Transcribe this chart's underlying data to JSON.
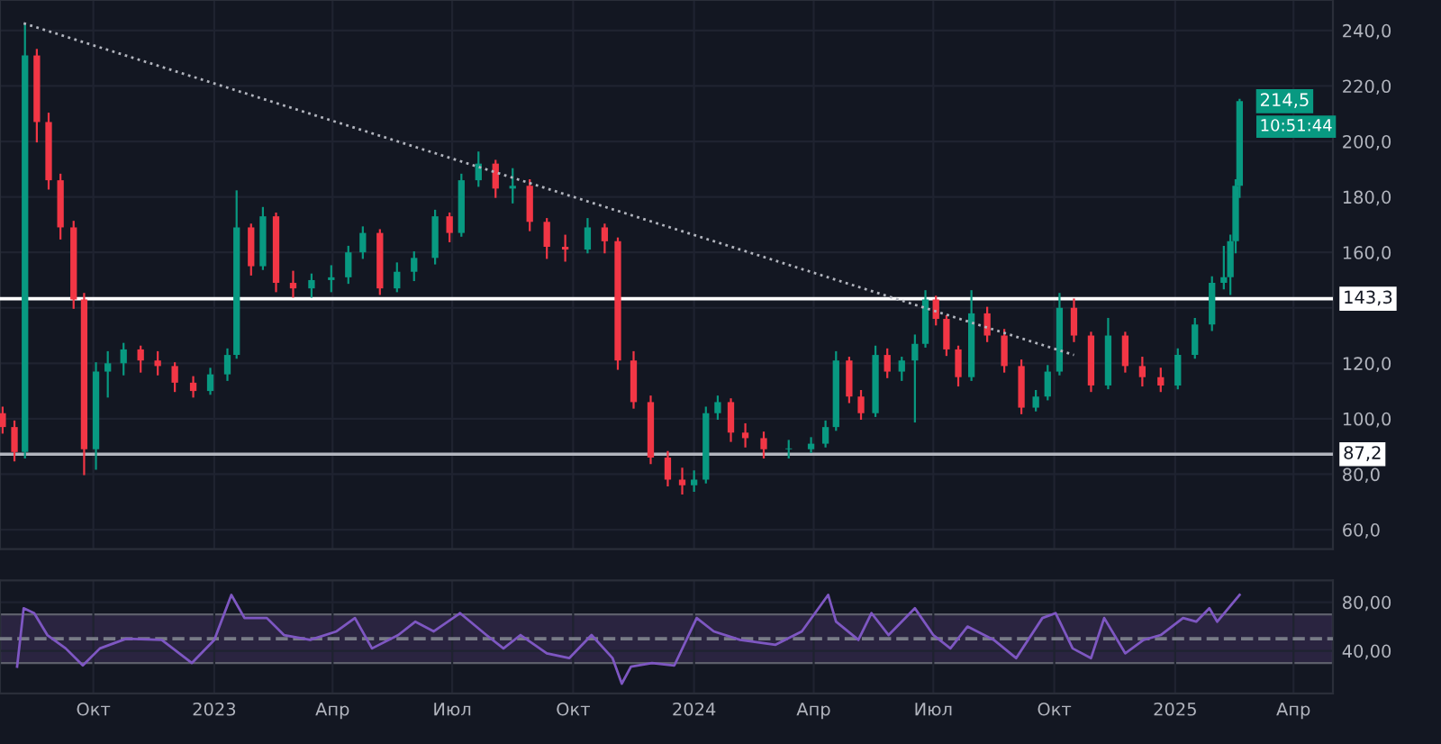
{
  "chart_data": [
    {
      "type": "candlestick",
      "x": [
        "2022-07-24",
        "2022-08-02",
        "2022-08-10",
        "2022-08-19",
        "2022-08-28",
        "2022-09-06",
        "2022-09-16",
        "2022-09-24",
        "2022-10-03",
        "2022-10-12",
        "2022-10-24",
        "2022-11-06",
        "2022-11-19",
        "2022-12-02",
        "2022-12-16",
        "2022-12-29",
        "2023-01-11",
        "2023-01-18",
        "2023-01-29",
        "2023-02-07",
        "2023-02-17",
        "2023-03-02",
        "2023-03-16",
        "2023-03-31",
        "2023-04-13",
        "2023-04-24",
        "2023-05-07",
        "2023-05-20",
        "2023-06-02",
        "2023-06-18",
        "2023-06-29",
        "2023-07-08",
        "2023-07-21",
        "2023-08-03",
        "2023-08-16",
        "2023-08-29",
        "2023-09-11",
        "2023-09-25",
        "2023-10-12",
        "2023-10-25",
        "2023-11-04",
        "2023-11-16",
        "2023-11-29",
        "2023-12-12",
        "2023-12-23",
        "2024-01-01",
        "2024-01-10",
        "2024-01-19",
        "2024-01-29",
        "2024-02-09",
        "2024-02-23",
        "2024-03-13",
        "2024-03-30",
        "2024-04-10",
        "2024-04-18",
        "2024-04-28",
        "2024-05-07",
        "2024-05-18",
        "2024-05-27",
        "2024-06-07",
        "2024-06-17",
        "2024-06-25",
        "2024-07-03",
        "2024-07-11",
        "2024-07-20",
        "2024-07-30",
        "2024-08-11",
        "2024-08-24",
        "2024-09-06",
        "2024-09-17",
        "2024-09-26",
        "2024-10-05",
        "2024-10-16",
        "2024-10-29",
        "2024-11-11",
        "2024-11-24",
        "2024-12-07",
        "2024-12-21",
        "2025-01-03",
        "2025-01-16",
        "2025-01-29",
        "2025-02-07",
        "2025-02-12",
        "2025-02-16",
        "2025-02-19"
      ],
      "ohlc": [
        [
          102,
          104,
          95,
          97
        ],
        [
          97,
          99,
          85,
          88
        ],
        [
          88,
          242,
          86,
          231
        ],
        [
          231,
          233,
          200,
          207
        ],
        [
          207,
          210,
          183,
          186
        ],
        [
          186,
          188,
          165,
          169
        ],
        [
          169,
          171,
          140,
          143
        ],
        [
          143,
          145,
          80,
          89
        ],
        [
          89,
          120,
          82,
          117
        ],
        [
          117,
          124,
          108,
          120
        ],
        [
          120,
          127,
          116,
          125
        ],
        [
          125,
          126,
          117,
          121
        ],
        [
          121,
          124,
          116,
          119
        ],
        [
          119,
          120,
          110,
          113
        ],
        [
          113,
          115,
          108,
          110
        ],
        [
          110,
          118,
          109,
          116
        ],
        [
          116,
          125,
          114,
          123
        ],
        [
          123,
          182,
          122,
          169
        ],
        [
          169,
          170,
          152,
          155
        ],
        [
          155,
          176,
          154,
          173
        ],
        [
          173,
          174,
          146,
          149
        ],
        [
          149,
          153,
          144,
          147
        ],
        [
          147,
          152,
          144,
          150
        ],
        [
          150,
          155,
          146,
          151
        ],
        [
          151,
          162,
          149,
          160
        ],
        [
          160,
          169,
          158,
          167
        ],
        [
          167,
          168,
          145,
          147
        ],
        [
          147,
          156,
          146,
          153
        ],
        [
          153,
          160,
          150,
          158
        ],
        [
          158,
          175,
          156,
          173
        ],
        [
          173,
          174,
          164,
          167
        ],
        [
          167,
          188,
          166,
          186
        ],
        [
          186,
          196,
          184,
          192
        ],
        [
          192,
          193,
          180,
          183
        ],
        [
          183,
          190,
          178,
          184
        ],
        [
          184,
          186,
          168,
          171
        ],
        [
          171,
          172,
          158,
          162
        ],
        [
          162,
          166,
          157,
          161
        ],
        [
          161,
          172,
          160,
          169
        ],
        [
          169,
          170,
          160,
          164
        ],
        [
          164,
          165,
          118,
          121
        ],
        [
          121,
          124,
          104,
          106
        ],
        [
          106,
          108,
          84,
          86
        ],
        [
          86,
          88,
          76,
          78
        ],
        [
          78,
          82,
          73,
          76
        ],
        [
          76,
          81,
          74,
          78
        ],
        [
          78,
          104,
          77,
          102
        ],
        [
          102,
          108,
          100,
          106
        ],
        [
          106,
          107,
          92,
          95
        ],
        [
          95,
          98,
          90,
          93
        ],
        [
          93,
          95,
          86,
          89
        ],
        [
          89,
          92,
          86,
          89
        ],
        [
          89,
          93,
          88,
          91
        ],
        [
          91,
          99,
          90,
          97
        ],
        [
          97,
          124,
          96,
          121
        ],
        [
          121,
          122,
          106,
          108
        ],
        [
          108,
          110,
          100,
          102
        ],
        [
          102,
          126,
          101,
          123
        ],
        [
          123,
          125,
          115,
          117
        ],
        [
          117,
          122,
          114,
          121
        ],
        [
          121,
          130,
          99,
          127
        ],
        [
          127,
          146,
          126,
          143
        ],
        [
          143,
          144,
          134,
          136
        ],
        [
          136,
          137,
          123,
          125
        ],
        [
          125,
          126,
          112,
          115
        ],
        [
          115,
          146,
          114,
          138
        ],
        [
          138,
          140,
          128,
          130
        ],
        [
          130,
          132,
          117,
          119
        ],
        [
          119,
          121,
          102,
          104
        ],
        [
          104,
          110,
          103,
          108
        ],
        [
          108,
          119,
          107,
          117
        ],
        [
          117,
          145,
          116,
          140
        ],
        [
          140,
          143,
          128,
          130
        ],
        [
          130,
          131,
          110,
          112
        ],
        [
          112,
          136,
          111,
          130
        ],
        [
          130,
          131,
          117,
          119
        ],
        [
          119,
          122,
          112,
          115
        ],
        [
          115,
          118,
          110,
          112
        ],
        [
          112,
          125,
          111,
          123
        ],
        [
          123,
          136,
          122,
          134
        ],
        [
          134,
          151,
          132,
          149
        ],
        [
          149,
          162,
          147,
          151
        ],
        [
          151,
          166,
          145,
          164
        ],
        [
          164,
          186,
          160,
          184
        ],
        [
          184,
          215,
          180,
          214.5
        ]
      ],
      "series": [
        {
          "type": "line",
          "x": [
            "2022-08-09",
            "2024-10-16"
          ],
          "values": [
            242.6,
            123
          ],
          "color": "#b2b5be",
          "line_style": "dotted"
        }
      ],
      "xlim": [
        "2022-07-22",
        "2025-05-01"
      ],
      "ylim": [
        53,
        251
      ],
      "yticks": [
        {
          "value": 60,
          "label": "60,0"
        },
        {
          "value": 80,
          "label": "80,0"
        },
        {
          "value": 100,
          "label": "100,0"
        },
        {
          "value": 120,
          "label": "120,0"
        },
        {
          "value": 140,
          "label": null
        },
        {
          "value": 160,
          "label": "160,0"
        },
        {
          "value": 180,
          "label": "180,0"
        },
        {
          "value": 200,
          "label": "200,0"
        },
        {
          "value": 220,
          "label": "220,0"
        },
        {
          "value": 240,
          "label": "240,0"
        }
      ],
      "ref_lines": [
        {
          "axis": "y",
          "value": 143.3,
          "label": "143,3",
          "color": "#ffffff"
        },
        {
          "axis": "y",
          "value": 87.2,
          "label": "87,2",
          "color": "#b2b5be"
        }
      ],
      "annotations": [
        {
          "text": "214,5",
          "x": "2025-02-19",
          "y": 214.5
        },
        "10:51:44"
      ],
      "tick_labels": "y",
      "grid": true
    },
    {
      "type": "line",
      "x": [
        "2022-08-04",
        "2022-08-09",
        "2022-08-17",
        "2022-08-27",
        "2022-09-10",
        "2022-09-23",
        "2022-10-06",
        "2022-10-26",
        "2022-11-22",
        "2022-12-15",
        "2023-01-01",
        "2023-01-14",
        "2023-01-24",
        "2023-02-10",
        "2023-02-23",
        "2023-03-15",
        "2023-04-04",
        "2023-04-18",
        "2023-05-01",
        "2023-05-21",
        "2023-06-03",
        "2023-06-17",
        "2023-07-07",
        "2023-07-27",
        "2023-08-09",
        "2023-08-22",
        "2023-09-11",
        "2023-09-28",
        "2023-10-15",
        "2023-10-31",
        "2023-11-07",
        "2023-11-14",
        "2023-11-30",
        "2023-12-17",
        "2024-01-03",
        "2024-01-16",
        "2024-02-05",
        "2024-03-03",
        "2024-03-23",
        "2024-04-12",
        "2024-04-18",
        "2024-05-05",
        "2024-05-15",
        "2024-05-28",
        "2024-06-17",
        "2024-07-01",
        "2024-07-14",
        "2024-07-27",
        "2024-08-16",
        "2024-09-02",
        "2024-09-22",
        "2024-10-02",
        "2024-10-15",
        "2024-10-29",
        "2024-11-08",
        "2024-11-24",
        "2024-12-08",
        "2024-12-21",
        "2025-01-07",
        "2025-01-17",
        "2025-01-27",
        "2025-02-02",
        "2025-02-19"
      ],
      "series": [
        {
          "color": "#7e57c2",
          "values": [
            27,
            75,
            71,
            53,
            42,
            28,
            42,
            50,
            49,
            30,
            49,
            86,
            67,
            67,
            53,
            49,
            56,
            67,
            42,
            53,
            64,
            56,
            71,
            53,
            42,
            53,
            38,
            34,
            53,
            34,
            13,
            27,
            30,
            28,
            67,
            56,
            49,
            45,
            56,
            86,
            64,
            49,
            71,
            53,
            75,
            53,
            42,
            60,
            49,
            34,
            67,
            71,
            42,
            34,
            67,
            38,
            49,
            53,
            67,
            64,
            75,
            64,
            86
          ]
        }
      ],
      "xlim": [
        "2022-07-22",
        "2025-05-01"
      ],
      "ylim": [
        5,
        98
      ],
      "yticks": [
        {
          "value": 40,
          "label": "40,00"
        },
        {
          "value": 80,
          "label": "80,00"
        }
      ],
      "xticks": [
        {
          "value": "2022-10-01",
          "label": "Окт"
        },
        {
          "value": "2023-01-01",
          "label": "2023"
        },
        {
          "value": "2023-04-01",
          "label": "Апр"
        },
        {
          "value": "2023-07-01",
          "label": "Июл"
        },
        {
          "value": "2023-10-01",
          "label": "Окт"
        },
        {
          "value": "2024-01-01",
          "label": "2024"
        },
        {
          "value": "2024-04-01",
          "label": "Апр"
        },
        {
          "value": "2024-07-01",
          "label": "Июл"
        },
        {
          "value": "2024-10-01",
          "label": "Окт"
        },
        {
          "value": "2025-01-01",
          "label": "2025"
        },
        {
          "value": "2025-04-01",
          "label": "Апр"
        }
      ],
      "bands": [
        {
          "axis": "y",
          "from": 30,
          "to": 70,
          "color": "#2a2440"
        }
      ],
      "ref_lines": [
        {
          "axis": "y",
          "value": 50,
          "color": "#787b86",
          "line_style": "dashed"
        }
      ],
      "grid": true
    }
  ]
}
